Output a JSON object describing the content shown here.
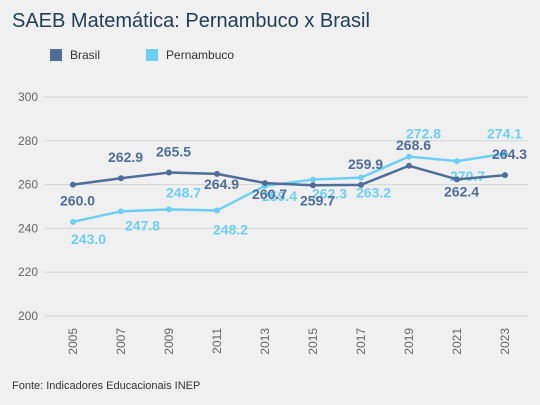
{
  "title": "SAEB Matemática: Pernambuco x Brasil",
  "source": "Fonte: Indicadores Educacionais INEP",
  "colors": {
    "brasil": "#4e6e99",
    "pernambuco": "#6ecff5",
    "grid": "#d5d5d5",
    "background": "#f0f0f0"
  },
  "chart_data": {
    "type": "line",
    "x": [
      "2005",
      "2007",
      "2009",
      "2011",
      "2013",
      "2015",
      "2017",
      "2019",
      "2021",
      "2023"
    ],
    "ylim": [
      200,
      300
    ],
    "yticks": [
      200,
      220,
      240,
      260,
      280,
      300
    ],
    "grid": true,
    "legend_position": "top-left",
    "series": [
      {
        "name": "Brasil",
        "color": "#4e6e99",
        "values": [
          260.0,
          262.9,
          265.5,
          264.9,
          260.7,
          259.7,
          259.9,
          268.6,
          262.4,
          264.3
        ],
        "labels": [
          "260.0",
          "262.9",
          "265.5",
          "264.9",
          "260.7",
          "259.7",
          "259.9",
          "268.6",
          "262.4",
          "264.3"
        ]
      },
      {
        "name": "Pernambuco",
        "color": "#6ecff5",
        "values": [
          243.0,
          247.8,
          248.7,
          248.2,
          259.4,
          262.3,
          263.2,
          272.8,
          270.7,
          274.1
        ],
        "labels": [
          "243.0",
          "247.8",
          "248.7",
          "248.2",
          "259.4",
          "262.3",
          "263.2",
          "272.8",
          "270.7",
          "274.1"
        ]
      }
    ]
  }
}
